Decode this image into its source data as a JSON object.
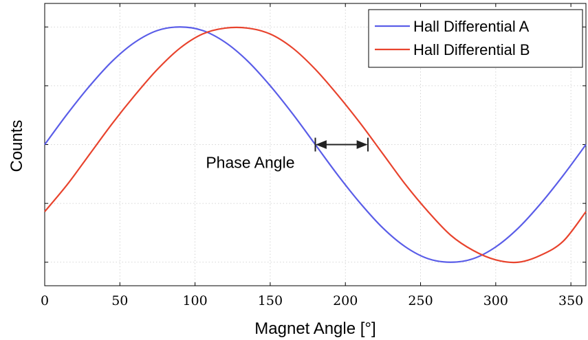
{
  "chart_data": {
    "type": "line",
    "title": "",
    "xlabel": "Magnet Angle [°]",
    "ylabel": "Counts",
    "xlim": [
      0,
      360
    ],
    "ylim": [
      -1.2,
      1.2
    ],
    "xticks": [
      0,
      50,
      100,
      150,
      200,
      250,
      300,
      350
    ],
    "yticks": [
      -1,
      -0.5,
      0,
      0.5,
      1
    ],
    "y_tick_labels_shown": false,
    "grid": true,
    "legend_position": "top-right",
    "series": [
      {
        "name": "Hall Differential A",
        "color": "#5a5de8",
        "x": [
          0,
          15,
          30,
          45,
          60,
          75,
          90,
          105,
          120,
          135,
          150,
          165,
          180,
          195,
          210,
          225,
          240,
          255,
          270,
          285,
          300,
          315,
          330,
          345,
          360
        ],
        "y": [
          0,
          0.26,
          0.5,
          0.71,
          0.87,
          0.97,
          1.0,
          0.97,
          0.87,
          0.71,
          0.5,
          0.26,
          0,
          -0.26,
          -0.5,
          -0.71,
          -0.87,
          -0.97,
          -1.0,
          -0.97,
          -0.87,
          -0.71,
          -0.5,
          -0.26,
          0
        ]
      },
      {
        "name": "Hall Differential B",
        "color": "#e8432d",
        "x": [
          0,
          15,
          30,
          45,
          60,
          75,
          90,
          105,
          120,
          135,
          150,
          165,
          180,
          195,
          210,
          225,
          240,
          255,
          270,
          285,
          300,
          315,
          330,
          345,
          360
        ],
        "y": [
          -0.57,
          -0.34,
          -0.08,
          0.18,
          0.42,
          0.64,
          0.82,
          0.94,
          0.99,
          0.99,
          0.94,
          0.82,
          0.64,
          0.42,
          0.18,
          -0.08,
          -0.34,
          -0.57,
          -0.77,
          -0.9,
          -0.98,
          -1.0,
          -0.94,
          -0.82,
          -0.57
        ]
      }
    ],
    "annotation": {
      "label": "Phase Angle",
      "x_start": 180,
      "x_end": 215,
      "y": 0
    }
  }
}
